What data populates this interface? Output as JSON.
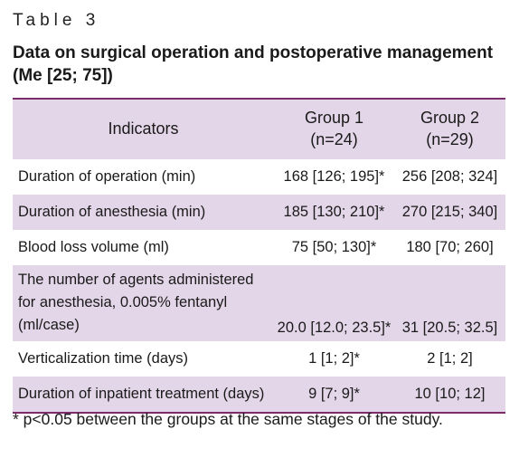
{
  "table_label": "Table 3",
  "caption": "Data on surgical operation and postoperative management (Me [25; 75])",
  "headers": {
    "indicators": "Indicators",
    "group1_line1": "Group 1",
    "group1_line2": "(n=24)",
    "group2_line1": "Group 2",
    "group2_line2": "(n=29)"
  },
  "rows": [
    {
      "indicator": "Duration of operation (min)",
      "group1": "168 [126; 195]*",
      "group2": "256 [208; 324]"
    },
    {
      "indicator": "Duration of anesthesia (min)",
      "group1": "185 [130; 210]*",
      "group2": "270 [215; 340]"
    },
    {
      "indicator": "Blood loss volume (ml)",
      "group1": "75 [50; 130]*",
      "group2": "180 [70; 260]"
    },
    {
      "indicator": "The number of agents administered for anesthesia, 0.005% fentanyl (ml/case)",
      "group1": "20.0 [12.0; 23.5]*",
      "group2": "31 [20.5; 32.5]"
    },
    {
      "indicator": "Verticalization time (days)",
      "group1": "1 [1; 2]*",
      "group2": "2 [1; 2]"
    },
    {
      "indicator": "Duration of inpatient treatment (days)",
      "group1": "9 [7; 9]*",
      "group2": "10 [10; 12]"
    }
  ],
  "footnote": "* p<0.05 between the groups at the same stages of the study."
}
